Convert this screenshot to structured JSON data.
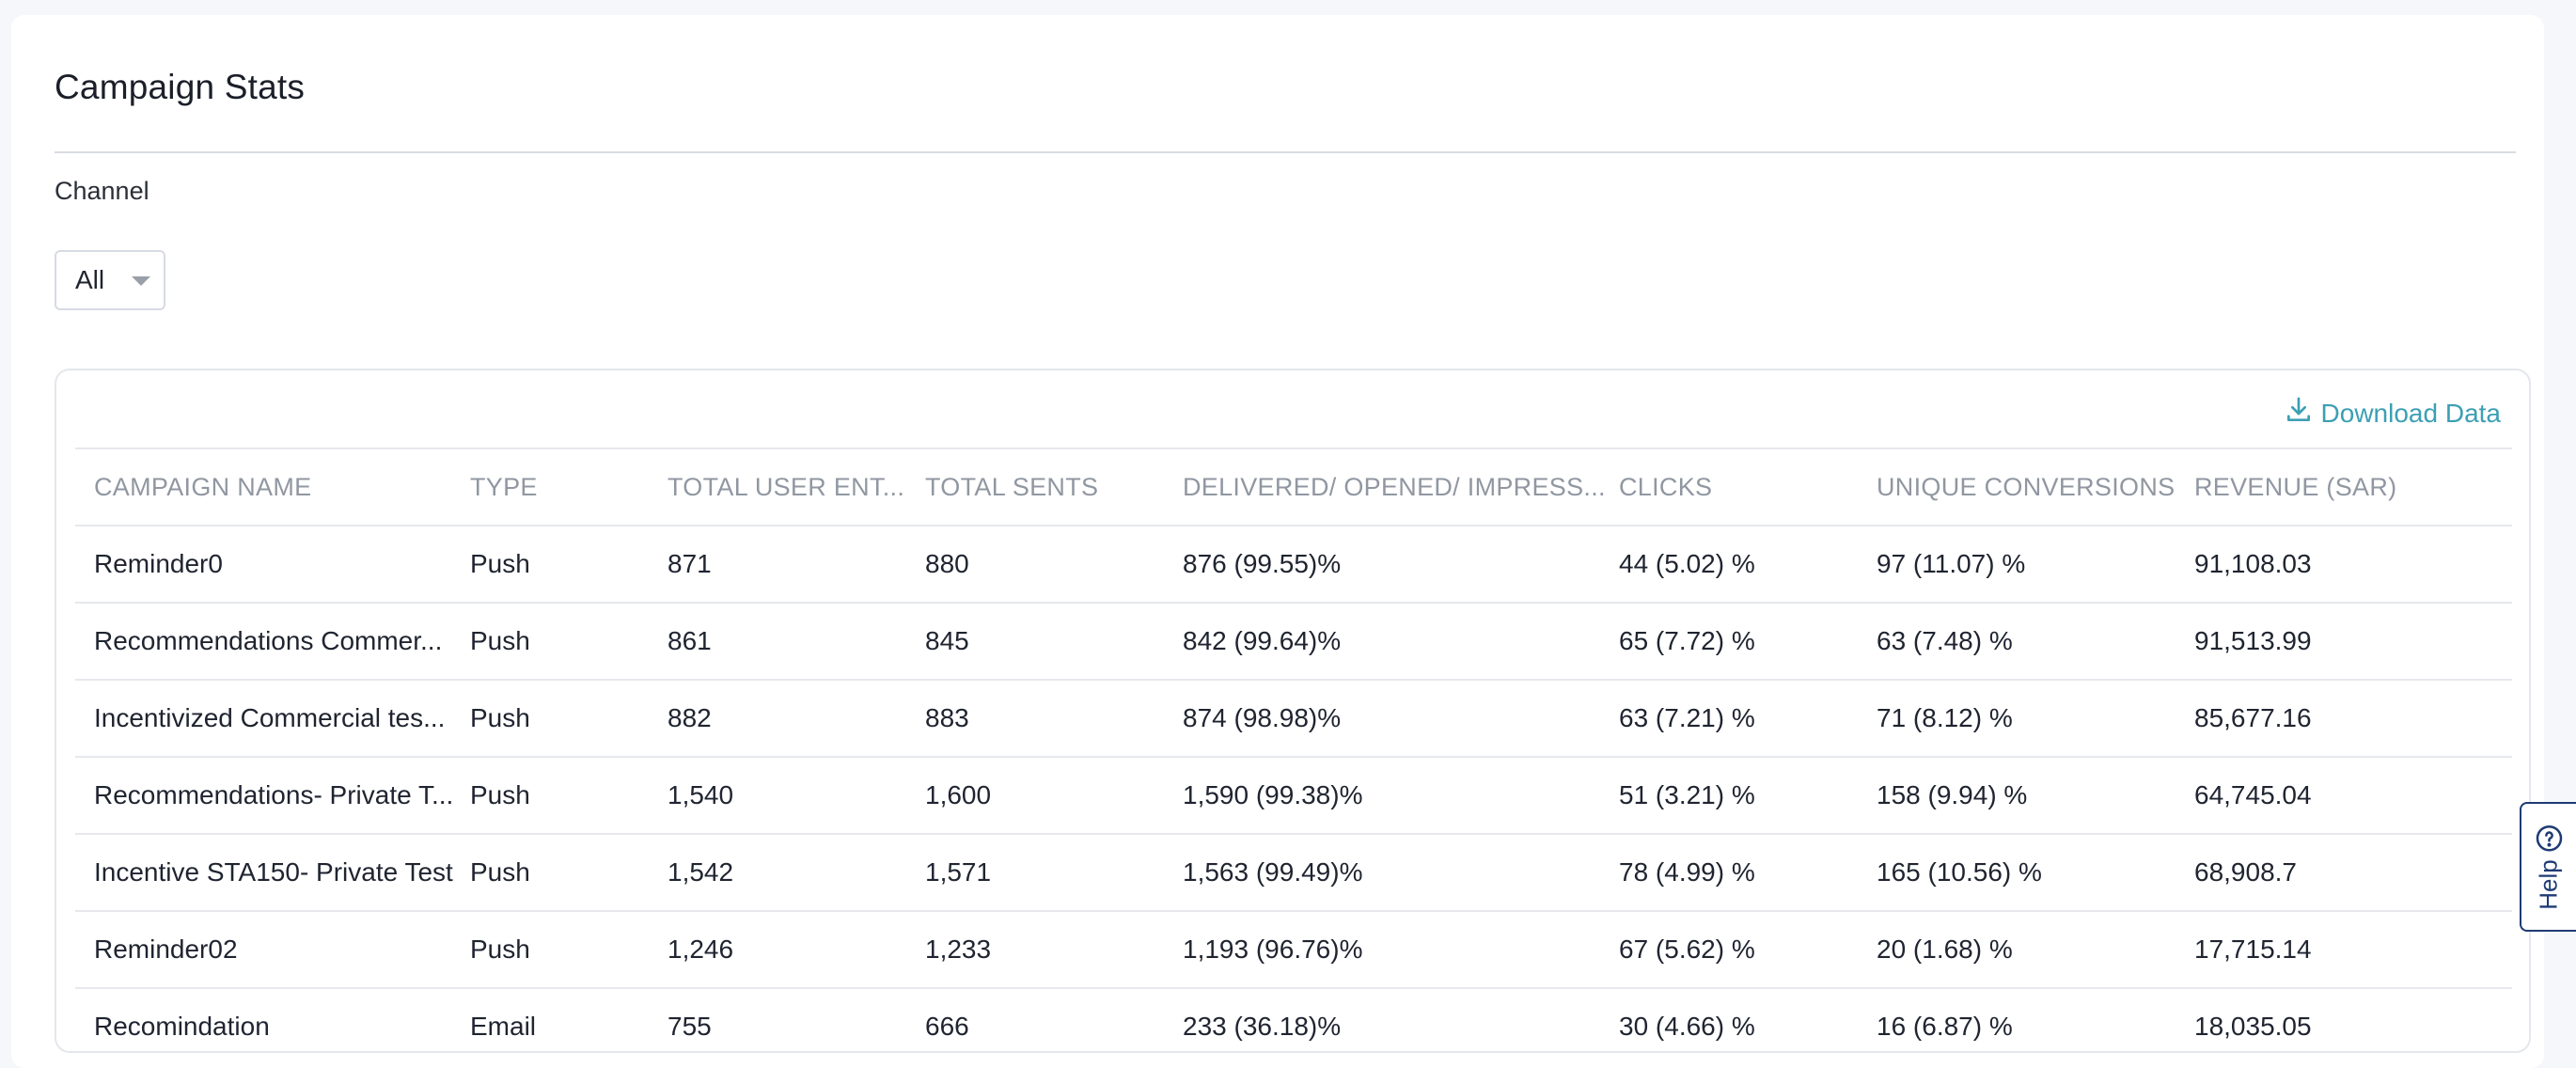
{
  "page": {
    "title": "Campaign Stats"
  },
  "filters": {
    "channel_label": "Channel",
    "channel_value": "All"
  },
  "actions": {
    "download_label": "Download Data"
  },
  "table": {
    "headers": [
      "CAMPAIGN NAME",
      "TYPE",
      "TOTAL USER ENT...",
      "TOTAL SENTS",
      "DELIVERED/ OPENED/ IMPRESS...",
      "CLICKS",
      "UNIQUE CONVERSIONS",
      "REVENUE (SAR)"
    ],
    "rows": [
      [
        "Reminder0",
        "Push",
        "871",
        "880",
        "876 (99.55)%",
        "44 (5.02) %",
        "97 (11.07) %",
        "91,108.03"
      ],
      [
        "Recommendations Commer...",
        "Push",
        "861",
        "845",
        "842 (99.64)%",
        "65 (7.72) %",
        "63 (7.48) %",
        "91,513.99"
      ],
      [
        "Incentivized Commercial tes...",
        "Push",
        "882",
        "883",
        "874 (98.98)%",
        "63 (7.21) %",
        "71 (8.12) %",
        "85,677.16"
      ],
      [
        "Recommendations- Private T...",
        "Push",
        "1,540",
        "1,600",
        "1,590 (99.38)%",
        "51 (3.21) %",
        "158 (9.94) %",
        "64,745.04"
      ],
      [
        "Incentive STA150- Private Test",
        "Push",
        "1,542",
        "1,571",
        "1,563 (99.49)%",
        "78 (4.99) %",
        "165 (10.56) %",
        "68,908.7"
      ],
      [
        "Reminder02",
        "Push",
        "1,246",
        "1,233",
        "1,193 (96.76)%",
        "67 (5.62) %",
        "20 (1.68) %",
        "17,715.14"
      ],
      [
        "Recomindation",
        "Email",
        "755",
        "666",
        "233 (36.18)%",
        "30 (4.66) %",
        "16 (6.87) %",
        "18,035.05"
      ]
    ]
  },
  "help": {
    "label": "Help"
  },
  "icons": {
    "download": "download-icon",
    "caret": "chevron-down-icon",
    "help": "help-circle-icon"
  },
  "colors": {
    "accent": "#3c9fb3",
    "help": "#1e3b74"
  }
}
